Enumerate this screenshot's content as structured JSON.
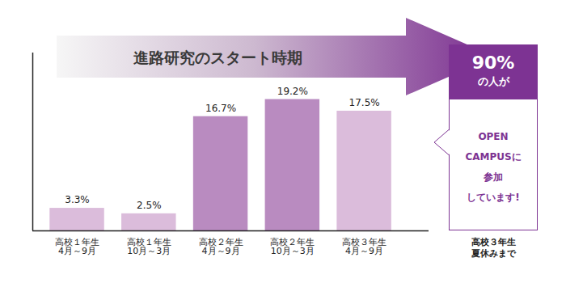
{
  "chart_data": {
    "type": "bar",
    "title": "進路研究のスタート時期",
    "categories": [
      "高校１年生\n4月～9月",
      "高校１年生\n10月～3月",
      "高校２年生\n4月～9月",
      "高校２年生\n10月～3月",
      "高校３年生\n4月～9月"
    ],
    "values": [
      3.3,
      2.5,
      16.7,
      19.2,
      17.5
    ],
    "value_labels": [
      "3.3%",
      "2.5%",
      "16.7%",
      "19.2%",
      "17.5%"
    ],
    "colors": [
      "#dbbcdb",
      "#dbbcdb",
      "#b98bc0",
      "#b98bc0",
      "#dbbcdb"
    ],
    "ylim": [
      0,
      26
    ],
    "yticks": [],
    "data_labels": true,
    "tick_labels": "x",
    "grid": false,
    "annotations": [
      {
        "text": "90%"
      },
      {
        "text": "の人が"
      },
      {
        "text": "OPEN\nCAMPUSに\n参加\nしています!"
      },
      {
        "text": "高校３年生\n夏休みまで"
      }
    ]
  }
}
